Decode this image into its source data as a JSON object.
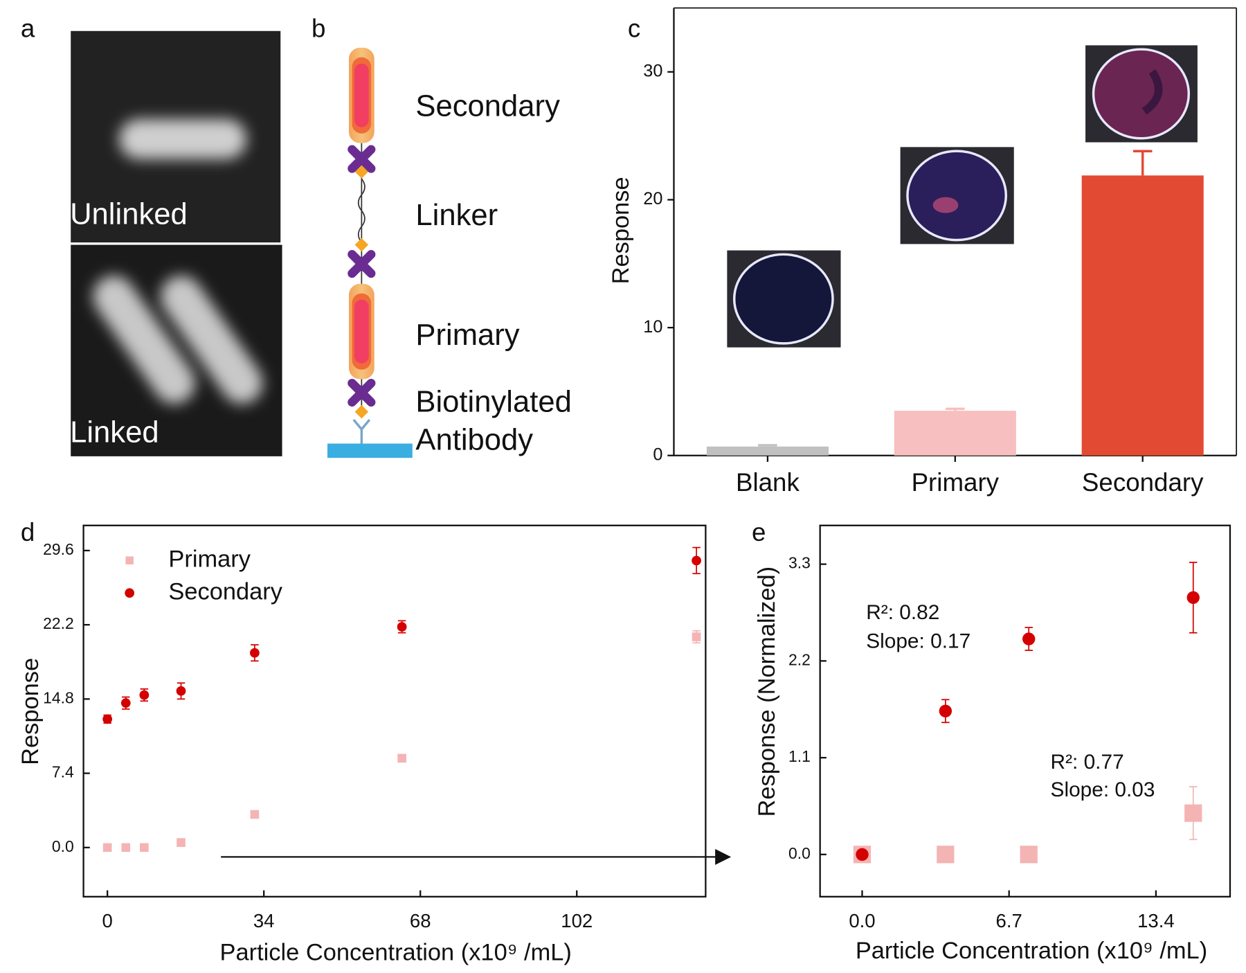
{
  "panels": {
    "a": {
      "letter": "a",
      "top_label": "Unlinked",
      "bottom_label": "Linked"
    },
    "b": {
      "letter": "b",
      "labels": [
        "Secondary",
        "Linker",
        "Primary",
        "Biotinylated",
        "Antibody"
      ]
    }
  },
  "chart_data": [
    {
      "letter": "c",
      "type": "bar",
      "ylabel": "Response",
      "categories": [
        "Blank",
        "Primary",
        "Secondary"
      ],
      "values": [
        0.7,
        3.5,
        21.9
      ],
      "errors": [
        0.1,
        0.15,
        1.9
      ],
      "colors": [
        "#c0c0c0",
        "#f7bfbf",
        "#e34a33"
      ],
      "ylim": [
        0,
        35
      ],
      "yticks": [
        0,
        10,
        20,
        30
      ]
    },
    {
      "letter": "d",
      "type": "scatter",
      "xlabel": "Particle Concentration (x10⁹ /mL)",
      "ylabel": "Response",
      "x": [
        0,
        4,
        8,
        16,
        32,
        64,
        128
      ],
      "series": [
        {
          "name": "Primary",
          "color": "#f4b4b4",
          "marker": "square",
          "values": [
            0,
            0,
            0,
            0.5,
            3.3,
            8.9,
            21.0
          ],
          "errors": [
            0.1,
            0.1,
            0.1,
            0.2,
            0.2,
            0.2,
            0.6
          ]
        },
        {
          "name": "Secondary",
          "color": "#d40000",
          "marker": "circle",
          "values": [
            12.8,
            14.4,
            15.2,
            15.6,
            19.4,
            22.0,
            28.6
          ],
          "errors": [
            0.4,
            0.6,
            0.6,
            0.8,
            0.8,
            0.6,
            1.3
          ]
        }
      ],
      "xlim": [
        -5.2,
        130
      ],
      "ylim": [
        -4.9,
        32.1
      ],
      "xticks": [
        0,
        34,
        68,
        102
      ],
      "yticks": [
        {
          "value": 0,
          "label": "0.0"
        },
        7.4,
        14.8,
        22.2,
        29.6
      ],
      "legend": "upper left"
    },
    {
      "letter": "e",
      "type": "scatter",
      "xlabel": "Particle Concentration (x10⁹ /mL)",
      "ylabel": "Response (Normalized)",
      "x": [
        0,
        3.8,
        7.6,
        15.1
      ],
      "series": [
        {
          "name": "Primary",
          "color": "#f4b4b4",
          "marker": "square",
          "values": [
            0,
            0,
            0,
            0.47
          ],
          "errors": [
            0,
            0,
            0,
            0.3
          ]
        },
        {
          "name": "Secondary",
          "color": "#d40000",
          "marker": "circle",
          "values": [
            0,
            1.63,
            2.45,
            2.92
          ],
          "errors": [
            0,
            0.13,
            0.13,
            0.4
          ]
        }
      ],
      "xlim": [
        -1.92,
        16.78
      ],
      "ylim": [
        -0.48,
        3.74
      ],
      "xticks": [
        {
          "value": 0,
          "label": "0.0"
        },
        6.7,
        13.4
      ],
      "yticks": [
        {
          "value": 0,
          "label": "0.0"
        },
        1.1,
        2.2,
        3.3
      ],
      "annotations": [
        "R²: 0.82",
        "Slope: 0.17",
        "R²: 0.77",
        "Slope: 0.03"
      ]
    }
  ]
}
